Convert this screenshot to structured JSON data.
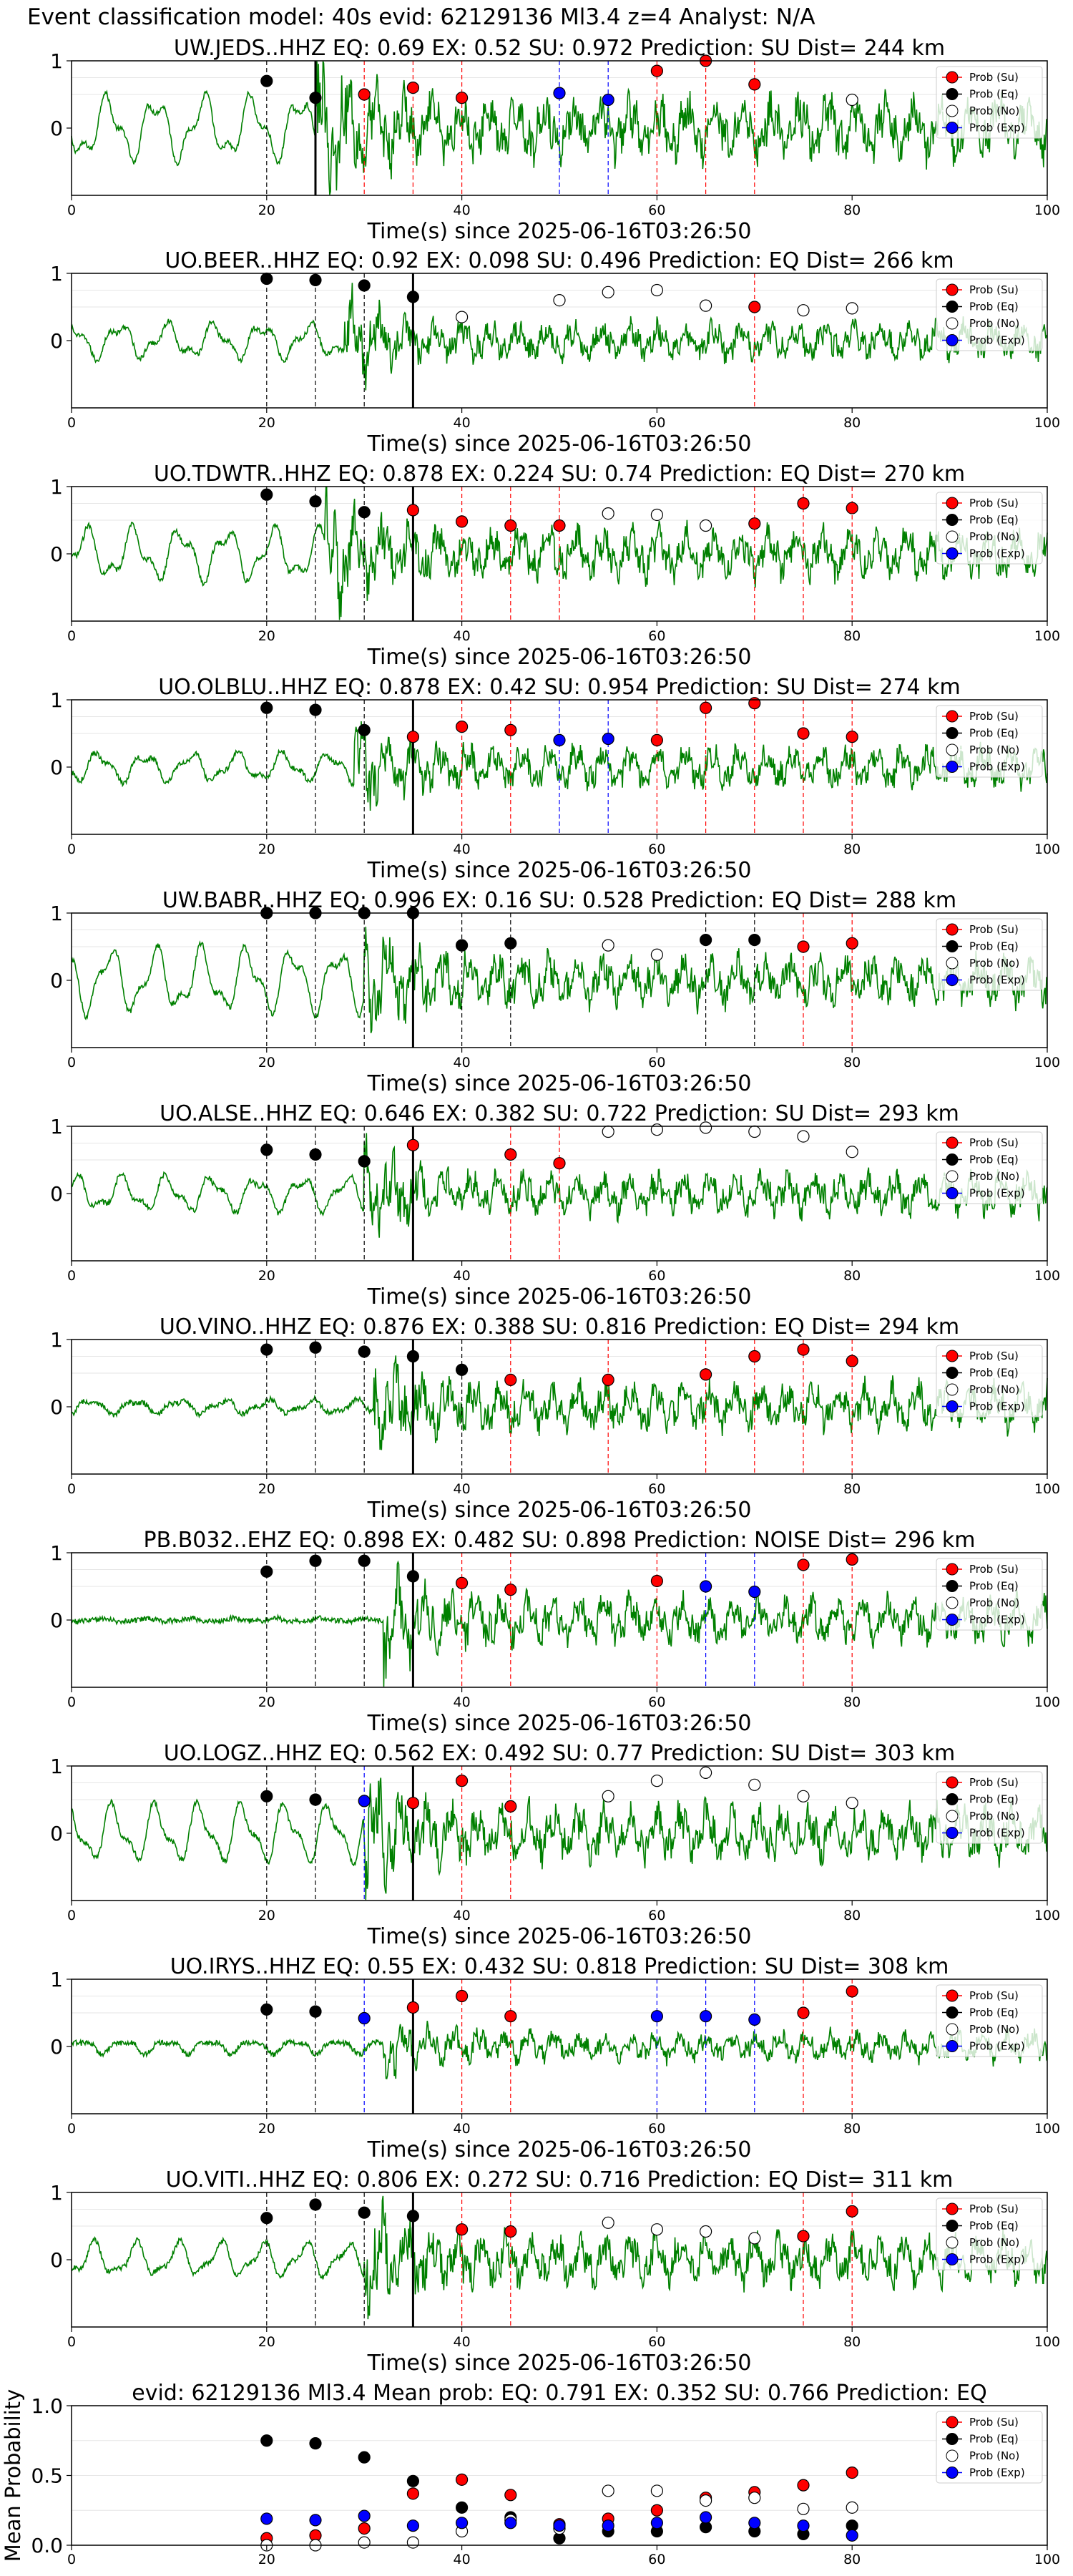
{
  "suptitle": "Event classification model: 40s evid: 62129136 Ml3.4 z=4 Analyst: N/A",
  "colors": {
    "su": "#ff0000",
    "eq": "#000000",
    "no": "#ffffff",
    "exp": "#0000ff",
    "trace": "#008000"
  },
  "legend": [
    "Prob (Su)",
    "Prob (Eq)",
    "Prob (No)",
    "Prob (Exp)"
  ],
  "chart_data": [
    {
      "type": "line",
      "title": "UW.JEDS..HHZ   EQ: 0.69  EX: 0.52  SU: 0.972   Prediction: SU    Dist= 244 km",
      "xlabel": "Time(s) since 2025-06-16T03:26:50",
      "xlim": [
        0,
        100
      ],
      "ylim": [
        -1,
        1
      ],
      "xticks": [
        0,
        20,
        40,
        60,
        80,
        100
      ],
      "yticks": [
        0,
        1
      ],
      "solid_line_x": 25,
      "onset_x": 25,
      "amp_before": 0.55,
      "amp_after": 0.75,
      "markers": [
        {
          "x": 20,
          "y": 0.7,
          "cls": "eq"
        },
        {
          "x": 25,
          "y": 0.45,
          "cls": "eq"
        },
        {
          "x": 30,
          "y": 0.5,
          "cls": "su"
        },
        {
          "x": 35,
          "y": 0.6,
          "cls": "su"
        },
        {
          "x": 40,
          "y": 0.45,
          "cls": "su"
        },
        {
          "x": 50,
          "y": 0.52,
          "cls": "exp"
        },
        {
          "x": 55,
          "y": 0.42,
          "cls": "exp"
        },
        {
          "x": 60,
          "y": 0.85,
          "cls": "su"
        },
        {
          "x": 65,
          "y": 1.0,
          "cls": "su"
        },
        {
          "x": 70,
          "y": 0.65,
          "cls": "su"
        },
        {
          "x": 80,
          "y": 0.42,
          "cls": "no"
        }
      ]
    },
    {
      "type": "line",
      "title": "UO.BEER..HHZ   EQ: 0.92  EX: 0.098  SU: 0.496   Prediction: EQ    Dist= 266 km",
      "xlabel": "Time(s) since 2025-06-16T03:26:50",
      "xlim": [
        0,
        100
      ],
      "ylim": [
        -1,
        1
      ],
      "xticks": [
        0,
        20,
        40,
        60,
        80,
        100
      ],
      "yticks": [
        0,
        1
      ],
      "solid_line_x": 35,
      "onset_x": 28,
      "amp_before": 0.3,
      "amp_after": 0.45,
      "markers": [
        {
          "x": 20,
          "y": 0.92,
          "cls": "eq"
        },
        {
          "x": 25,
          "y": 0.9,
          "cls": "eq"
        },
        {
          "x": 30,
          "y": 0.82,
          "cls": "eq"
        },
        {
          "x": 35,
          "y": 0.65,
          "cls": "eq"
        },
        {
          "x": 40,
          "y": 0.35,
          "cls": "no"
        },
        {
          "x": 50,
          "y": 0.6,
          "cls": "no"
        },
        {
          "x": 55,
          "y": 0.72,
          "cls": "no"
        },
        {
          "x": 60,
          "y": 0.75,
          "cls": "no"
        },
        {
          "x": 65,
          "y": 0.52,
          "cls": "no"
        },
        {
          "x": 70,
          "y": 0.5,
          "cls": "su"
        },
        {
          "x": 75,
          "y": 0.45,
          "cls": "no"
        },
        {
          "x": 80,
          "y": 0.48,
          "cls": "no"
        }
      ]
    },
    {
      "type": "line",
      "title": "UO.TDWTR..HHZ   EQ: 0.878  EX: 0.224  SU: 0.74   Prediction: EQ    Dist= 270 km",
      "xlabel": "Time(s) since 2025-06-16T03:26:50",
      "xlim": [
        0,
        100
      ],
      "ylim": [
        -1,
        1
      ],
      "xticks": [
        0,
        20,
        40,
        60,
        80,
        100
      ],
      "yticks": [
        0,
        1
      ],
      "solid_line_x": 35,
      "onset_x": 26,
      "amp_before": 0.45,
      "amp_after": 0.6,
      "markers": [
        {
          "x": 20,
          "y": 0.88,
          "cls": "eq"
        },
        {
          "x": 25,
          "y": 0.78,
          "cls": "eq"
        },
        {
          "x": 30,
          "y": 0.62,
          "cls": "eq"
        },
        {
          "x": 35,
          "y": 0.65,
          "cls": "su"
        },
        {
          "x": 40,
          "y": 0.48,
          "cls": "su"
        },
        {
          "x": 45,
          "y": 0.42,
          "cls": "su"
        },
        {
          "x": 50,
          "y": 0.42,
          "cls": "su"
        },
        {
          "x": 55,
          "y": 0.6,
          "cls": "no"
        },
        {
          "x": 60,
          "y": 0.58,
          "cls": "no"
        },
        {
          "x": 65,
          "y": 0.42,
          "cls": "no"
        },
        {
          "x": 70,
          "y": 0.45,
          "cls": "su"
        },
        {
          "x": 75,
          "y": 0.75,
          "cls": "su"
        },
        {
          "x": 80,
          "y": 0.68,
          "cls": "su"
        }
      ]
    },
    {
      "type": "line",
      "title": "UO.OLBLU..HHZ   EQ: 0.878  EX: 0.42  SU: 0.954   Prediction: SU    Dist= 274 km",
      "xlabel": "Time(s) since 2025-06-16T03:26:50",
      "xlim": [
        0,
        100
      ],
      "ylim": [
        -1,
        1
      ],
      "xticks": [
        0,
        20,
        40,
        60,
        80,
        100
      ],
      "yticks": [
        0,
        1
      ],
      "solid_line_x": 35,
      "onset_x": 29,
      "amp_before": 0.25,
      "amp_after": 0.5,
      "markers": [
        {
          "x": 20,
          "y": 0.88,
          "cls": "eq"
        },
        {
          "x": 25,
          "y": 0.85,
          "cls": "eq"
        },
        {
          "x": 30,
          "y": 0.55,
          "cls": "eq"
        },
        {
          "x": 35,
          "y": 0.45,
          "cls": "su"
        },
        {
          "x": 40,
          "y": 0.6,
          "cls": "su"
        },
        {
          "x": 45,
          "y": 0.55,
          "cls": "su"
        },
        {
          "x": 50,
          "y": 0.4,
          "cls": "exp"
        },
        {
          "x": 55,
          "y": 0.42,
          "cls": "exp"
        },
        {
          "x": 60,
          "y": 0.4,
          "cls": "su"
        },
        {
          "x": 65,
          "y": 0.88,
          "cls": "su"
        },
        {
          "x": 70,
          "y": 0.95,
          "cls": "su"
        },
        {
          "x": 75,
          "y": 0.5,
          "cls": "su"
        },
        {
          "x": 80,
          "y": 0.45,
          "cls": "su"
        }
      ]
    },
    {
      "type": "line",
      "title": "UW.BABR..HHZ   EQ: 0.996  EX: 0.16  SU: 0.528   Prediction: EQ    Dist= 288 km",
      "xlabel": "Time(s) since 2025-06-16T03:26:50",
      "xlim": [
        0,
        100
      ],
      "ylim": [
        -1,
        1
      ],
      "xticks": [
        0,
        20,
        40,
        60,
        80,
        100
      ],
      "yticks": [
        0,
        1
      ],
      "solid_line_x": 35,
      "onset_x": 30,
      "amp_before": 0.55,
      "amp_after": 0.6,
      "markers": [
        {
          "x": 20,
          "y": 1.0,
          "cls": "eq"
        },
        {
          "x": 25,
          "y": 1.0,
          "cls": "eq"
        },
        {
          "x": 30,
          "y": 1.0,
          "cls": "eq"
        },
        {
          "x": 35,
          "y": 1.0,
          "cls": "eq"
        },
        {
          "x": 40,
          "y": 0.52,
          "cls": "eq"
        },
        {
          "x": 45,
          "y": 0.55,
          "cls": "eq"
        },
        {
          "x": 55,
          "y": 0.52,
          "cls": "no"
        },
        {
          "x": 60,
          "y": 0.38,
          "cls": "no"
        },
        {
          "x": 65,
          "y": 0.6,
          "cls": "eq"
        },
        {
          "x": 70,
          "y": 0.6,
          "cls": "eq"
        },
        {
          "x": 75,
          "y": 0.5,
          "cls": "su"
        },
        {
          "x": 80,
          "y": 0.55,
          "cls": "su"
        }
      ]
    },
    {
      "type": "line",
      "title": "UO.ALSE..HHZ   EQ: 0.646  EX: 0.382  SU: 0.722   Prediction: SU    Dist= 293 km",
      "xlabel": "Time(s) since 2025-06-16T03:26:50",
      "xlim": [
        0,
        100
      ],
      "ylim": [
        -1,
        1
      ],
      "xticks": [
        0,
        20,
        40,
        60,
        80,
        100
      ],
      "yticks": [
        0,
        1
      ],
      "solid_line_x": 35,
      "onset_x": 30,
      "amp_before": 0.3,
      "amp_after": 0.5,
      "markers": [
        {
          "x": 20,
          "y": 0.65,
          "cls": "eq"
        },
        {
          "x": 25,
          "y": 0.58,
          "cls": "eq"
        },
        {
          "x": 30,
          "y": 0.48,
          "cls": "eq"
        },
        {
          "x": 35,
          "y": 0.72,
          "cls": "su"
        },
        {
          "x": 45,
          "y": 0.58,
          "cls": "su"
        },
        {
          "x": 50,
          "y": 0.45,
          "cls": "su"
        },
        {
          "x": 55,
          "y": 0.92,
          "cls": "no"
        },
        {
          "x": 60,
          "y": 0.95,
          "cls": "no"
        },
        {
          "x": 65,
          "y": 0.98,
          "cls": "no"
        },
        {
          "x": 70,
          "y": 0.92,
          "cls": "no"
        },
        {
          "x": 75,
          "y": 0.85,
          "cls": "no"
        },
        {
          "x": 80,
          "y": 0.62,
          "cls": "no"
        }
      ]
    },
    {
      "type": "line",
      "title": "UO.VINO..HHZ   EQ: 0.876  EX: 0.388  SU: 0.816   Prediction: EQ    Dist= 294 km",
      "xlabel": "Time(s) since 2025-06-16T03:26:50",
      "xlim": [
        0,
        100
      ],
      "ylim": [
        -1,
        1
      ],
      "xticks": [
        0,
        20,
        40,
        60,
        80,
        100
      ],
      "yticks": [
        0,
        1
      ],
      "solid_line_x": 35,
      "onset_x": 31,
      "amp_before": 0.12,
      "amp_after": 0.55,
      "markers": [
        {
          "x": 20,
          "y": 0.85,
          "cls": "eq"
        },
        {
          "x": 25,
          "y": 0.88,
          "cls": "eq"
        },
        {
          "x": 30,
          "y": 0.82,
          "cls": "eq"
        },
        {
          "x": 35,
          "y": 0.75,
          "cls": "eq"
        },
        {
          "x": 40,
          "y": 0.55,
          "cls": "eq"
        },
        {
          "x": 45,
          "y": 0.4,
          "cls": "su"
        },
        {
          "x": 55,
          "y": 0.4,
          "cls": "su"
        },
        {
          "x": 65,
          "y": 0.48,
          "cls": "su"
        },
        {
          "x": 70,
          "y": 0.75,
          "cls": "su"
        },
        {
          "x": 75,
          "y": 0.85,
          "cls": "su"
        },
        {
          "x": 80,
          "y": 0.68,
          "cls": "su"
        }
      ]
    },
    {
      "type": "line",
      "title": "PB.B032..EHZ   EQ: 0.898  EX: 0.482  SU: 0.898   Prediction: NOISE    Dist= 296 km",
      "xlabel": "Time(s) since 2025-06-16T03:26:50",
      "xlim": [
        0,
        100
      ],
      "ylim": [
        -1,
        1
      ],
      "xticks": [
        0,
        20,
        40,
        60,
        80,
        100
      ],
      "yticks": [
        0,
        1
      ],
      "solid_line_x": 35,
      "onset_x": 32,
      "amp_before": 0.03,
      "amp_after": 0.55,
      "markers": [
        {
          "x": 20,
          "y": 0.72,
          "cls": "eq"
        },
        {
          "x": 25,
          "y": 0.88,
          "cls": "eq"
        },
        {
          "x": 30,
          "y": 0.88,
          "cls": "eq"
        },
        {
          "x": 35,
          "y": 0.65,
          "cls": "eq"
        },
        {
          "x": 40,
          "y": 0.55,
          "cls": "su"
        },
        {
          "x": 45,
          "y": 0.45,
          "cls": "su"
        },
        {
          "x": 60,
          "y": 0.58,
          "cls": "su"
        },
        {
          "x": 65,
          "y": 0.5,
          "cls": "exp"
        },
        {
          "x": 70,
          "y": 0.42,
          "cls": "exp"
        },
        {
          "x": 75,
          "y": 0.82,
          "cls": "su"
        },
        {
          "x": 80,
          "y": 0.9,
          "cls": "su"
        }
      ]
    },
    {
      "type": "line",
      "title": "UO.LOGZ..HHZ   EQ: 0.562  EX: 0.492  SU: 0.77   Prediction: SU    Dist= 303 km",
      "xlabel": "Time(s) since 2025-06-16T03:26:50",
      "xlim": [
        0,
        100
      ],
      "ylim": [
        -1,
        1
      ],
      "xticks": [
        0,
        20,
        40,
        60,
        80,
        100
      ],
      "yticks": [
        0,
        1
      ],
      "solid_line_x": 35,
      "onset_x": 30,
      "amp_before": 0.5,
      "amp_after": 0.65,
      "markers": [
        {
          "x": 20,
          "y": 0.55,
          "cls": "eq"
        },
        {
          "x": 25,
          "y": 0.5,
          "cls": "eq"
        },
        {
          "x": 30,
          "y": 0.48,
          "cls": "exp"
        },
        {
          "x": 35,
          "y": 0.45,
          "cls": "su"
        },
        {
          "x": 40,
          "y": 0.78,
          "cls": "su"
        },
        {
          "x": 45,
          "y": 0.4,
          "cls": "su"
        },
        {
          "x": 55,
          "y": 0.55,
          "cls": "no"
        },
        {
          "x": 60,
          "y": 0.78,
          "cls": "no"
        },
        {
          "x": 65,
          "y": 0.9,
          "cls": "no"
        },
        {
          "x": 70,
          "y": 0.72,
          "cls": "no"
        },
        {
          "x": 75,
          "y": 0.55,
          "cls": "no"
        },
        {
          "x": 80,
          "y": 0.45,
          "cls": "no"
        }
      ]
    },
    {
      "type": "line",
      "title": "UO.IRYS..HHZ   EQ: 0.55  EX: 0.432  SU: 0.818   Prediction: SU    Dist= 308 km",
      "xlabel": "Time(s) since 2025-06-16T03:26:50",
      "xlim": [
        0,
        100
      ],
      "ylim": [
        -1,
        1
      ],
      "xticks": [
        0,
        20,
        40,
        60,
        80,
        100
      ],
      "yticks": [
        0,
        1
      ],
      "solid_line_x": 35,
      "onset_x": 32,
      "amp_before": 0.12,
      "amp_after": 0.35,
      "markers": [
        {
          "x": 20,
          "y": 0.55,
          "cls": "eq"
        },
        {
          "x": 25,
          "y": 0.52,
          "cls": "eq"
        },
        {
          "x": 30,
          "y": 0.42,
          "cls": "exp"
        },
        {
          "x": 35,
          "y": 0.58,
          "cls": "su"
        },
        {
          "x": 40,
          "y": 0.75,
          "cls": "su"
        },
        {
          "x": 45,
          "y": 0.45,
          "cls": "su"
        },
        {
          "x": 60,
          "y": 0.45,
          "cls": "exp"
        },
        {
          "x": 65,
          "y": 0.45,
          "cls": "exp"
        },
        {
          "x": 70,
          "y": 0.4,
          "cls": "exp"
        },
        {
          "x": 75,
          "y": 0.5,
          "cls": "su"
        },
        {
          "x": 80,
          "y": 0.82,
          "cls": "su"
        }
      ]
    },
    {
      "type": "line",
      "title": "UO.VITI..HHZ   EQ: 0.806  EX: 0.272  SU: 0.716   Prediction: EQ    Dist= 311 km",
      "xlabel": "Time(s) since 2025-06-16T03:26:50",
      "xlim": [
        0,
        100
      ],
      "ylim": [
        -1,
        1
      ],
      "xticks": [
        0,
        20,
        40,
        60,
        80,
        100
      ],
      "yticks": [
        0,
        1
      ],
      "solid_line_x": 35,
      "onset_x": 30,
      "amp_before": 0.3,
      "amp_after": 0.6,
      "markers": [
        {
          "x": 20,
          "y": 0.62,
          "cls": "eq"
        },
        {
          "x": 25,
          "y": 0.82,
          "cls": "eq"
        },
        {
          "x": 30,
          "y": 0.7,
          "cls": "eq"
        },
        {
          "x": 35,
          "y": 0.65,
          "cls": "eq"
        },
        {
          "x": 40,
          "y": 0.45,
          "cls": "su"
        },
        {
          "x": 45,
          "y": 0.42,
          "cls": "su"
        },
        {
          "x": 55,
          "y": 0.55,
          "cls": "no"
        },
        {
          "x": 60,
          "y": 0.45,
          "cls": "no"
        },
        {
          "x": 65,
          "y": 0.42,
          "cls": "no"
        },
        {
          "x": 70,
          "y": 0.32,
          "cls": "no"
        },
        {
          "x": 75,
          "y": 0.35,
          "cls": "su"
        },
        {
          "x": 80,
          "y": 0.72,
          "cls": "su"
        }
      ]
    },
    {
      "type": "scatter",
      "title": "evid: 62129136  Ml3.4   Mean prob:   EQ: 0.791  EX: 0.352  SU: 0.766   Prediction: EQ",
      "xlabel": "",
      "ylabel": "Mean Probability",
      "xlim": [
        0,
        100
      ],
      "ylim": [
        0,
        1
      ],
      "xticks": [
        0,
        20,
        40,
        60,
        80,
        100
      ],
      "yticks": [
        0.0,
        0.5,
        1.0
      ],
      "ytick_labels": [
        "0.0",
        "0.5",
        "1.0"
      ],
      "series": [
        {
          "cls": "su",
          "x": [
            20,
            25,
            30,
            35,
            40,
            45,
            50,
            55,
            60,
            65,
            70,
            75,
            80
          ],
          "y": [
            0.05,
            0.07,
            0.12,
            0.37,
            0.47,
            0.36,
            0.15,
            0.19,
            0.25,
            0.34,
            0.38,
            0.43,
            0.52
          ]
        },
        {
          "cls": "eq",
          "x": [
            20,
            25,
            30,
            35,
            40,
            45,
            50,
            55,
            60,
            65,
            70,
            75,
            80
          ],
          "y": [
            0.75,
            0.73,
            0.63,
            0.46,
            0.27,
            0.2,
            0.05,
            0.1,
            0.1,
            0.13,
            0.1,
            0.08,
            0.14
          ]
        },
        {
          "cls": "no",
          "x": [
            20,
            25,
            30,
            35,
            40,
            45,
            50,
            55,
            60,
            65,
            70,
            75,
            80
          ],
          "y": [
            0.0,
            0.0,
            0.02,
            0.02,
            0.1,
            0.18,
            0.12,
            0.39,
            0.39,
            0.32,
            0.34,
            0.26,
            0.27
          ]
        },
        {
          "cls": "exp",
          "x": [
            20,
            25,
            30,
            35,
            40,
            45,
            50,
            55,
            60,
            65,
            70,
            75,
            80
          ],
          "y": [
            0.19,
            0.18,
            0.21,
            0.14,
            0.16,
            0.16,
            0.14,
            0.14,
            0.16,
            0.2,
            0.16,
            0.14,
            0.07
          ]
        }
      ]
    }
  ]
}
